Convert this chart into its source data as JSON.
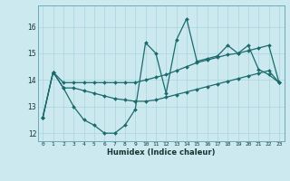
{
  "title": "",
  "xlabel": "Humidex (Indice chaleur)",
  "bg_color": "#cce9f0",
  "line_color": "#1a6b6b",
  "grid_color": "#aad4dc",
  "xmin": -0.5,
  "xmax": 23.5,
  "ymin": 11.7,
  "ymax": 16.8,
  "yticks": [
    12,
    13,
    14,
    15,
    16
  ],
  "xtick_labels": [
    "0",
    "1",
    "2",
    "3",
    "4",
    "5",
    "6",
    "7",
    "8",
    "9",
    "10",
    "11",
    "12",
    "13",
    "14",
    "15",
    "16",
    "17",
    "18",
    "19",
    "20",
    "21",
    "22",
    "23"
  ],
  "series1": [
    12.6,
    14.3,
    13.7,
    13.0,
    12.5,
    12.3,
    12.0,
    12.0,
    12.3,
    12.9,
    15.4,
    15.0,
    13.5,
    15.5,
    16.3,
    14.7,
    14.8,
    14.9,
    15.3,
    15.0,
    15.3,
    14.4,
    14.2,
    13.9
  ],
  "series2": [
    12.6,
    14.3,
    13.9,
    13.9,
    13.9,
    13.9,
    13.9,
    13.9,
    13.9,
    13.9,
    14.0,
    14.1,
    14.2,
    14.35,
    14.5,
    14.65,
    14.75,
    14.85,
    14.95,
    15.0,
    15.1,
    15.2,
    15.3,
    13.9
  ],
  "series3": [
    12.6,
    14.3,
    13.7,
    13.7,
    13.6,
    13.5,
    13.4,
    13.3,
    13.25,
    13.2,
    13.2,
    13.25,
    13.35,
    13.45,
    13.55,
    13.65,
    13.75,
    13.85,
    13.95,
    14.05,
    14.15,
    14.25,
    14.35,
    13.9
  ]
}
